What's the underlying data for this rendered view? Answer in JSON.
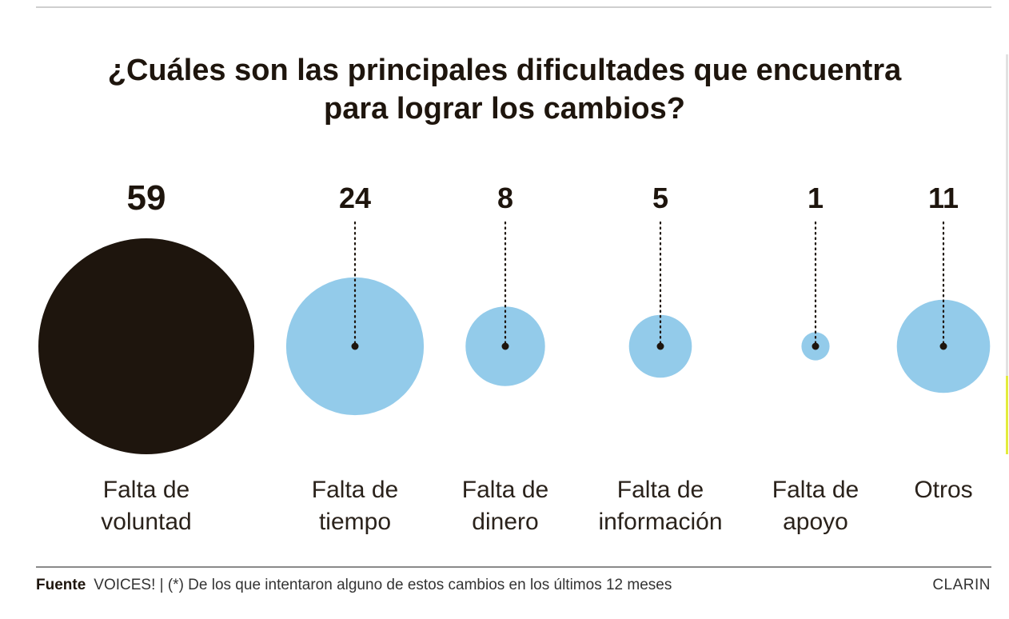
{
  "title": {
    "line1": "¿Cuáles son las principales dificultades que encuentra",
    "line2": "para lograr los cambios?"
  },
  "chart_data": {
    "type": "bubble",
    "title": "¿Cuáles son las principales dificultades que encuentra para lograr los cambios?",
    "categories": [
      [
        "Falta de",
        "voluntad"
      ],
      [
        "Falta de",
        "tiempo"
      ],
      [
        "Falta de",
        "dinero"
      ],
      [
        "Falta de",
        "información"
      ],
      [
        "Falta de",
        "apoyo"
      ],
      [
        "Otros"
      ]
    ],
    "values": [
      59,
      24,
      8,
      5,
      1,
      11
    ],
    "highlight_index": 0,
    "colors": {
      "highlight": "#1e150d",
      "bubble": "#93cbea",
      "text": "#1e150d",
      "marker": "#1e150d"
    }
  },
  "footer": {
    "source_label": "Fuente",
    "source_text": "VOICES! | (*) De los que intentaron alguno de estos cambios en los últimos 12 meses",
    "brand": "CLARIN"
  }
}
